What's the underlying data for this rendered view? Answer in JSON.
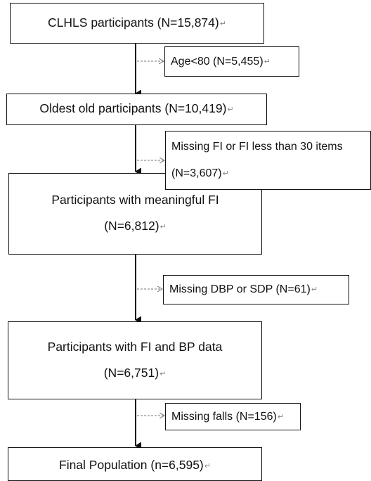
{
  "flow": {
    "main_boxes": [
      {
        "lines": [
          "CLHLS participants (N=15,874)"
        ]
      },
      {
        "lines": [
          "Oldest old participants (N=10,419)"
        ]
      },
      {
        "lines": [
          "Participants with meaningful FI",
          "(N=6,812)"
        ]
      },
      {
        "lines": [
          "Participants with FI and BP data",
          "(N=6,751)"
        ]
      },
      {
        "lines": [
          "Final Population (n=6,595)"
        ]
      }
    ],
    "exclusions": [
      {
        "lines": [
          "Age<80 (N=5,455)"
        ]
      },
      {
        "lines": [
          "Missing FI or FI less than 30 items",
          "(N=3,607)"
        ]
      },
      {
        "lines": [
          "Missing DBP or SDP (N=61)"
        ]
      },
      {
        "lines": [
          "Missing falls (N=156)"
        ]
      }
    ],
    "paragraph_mark": "↵"
  }
}
